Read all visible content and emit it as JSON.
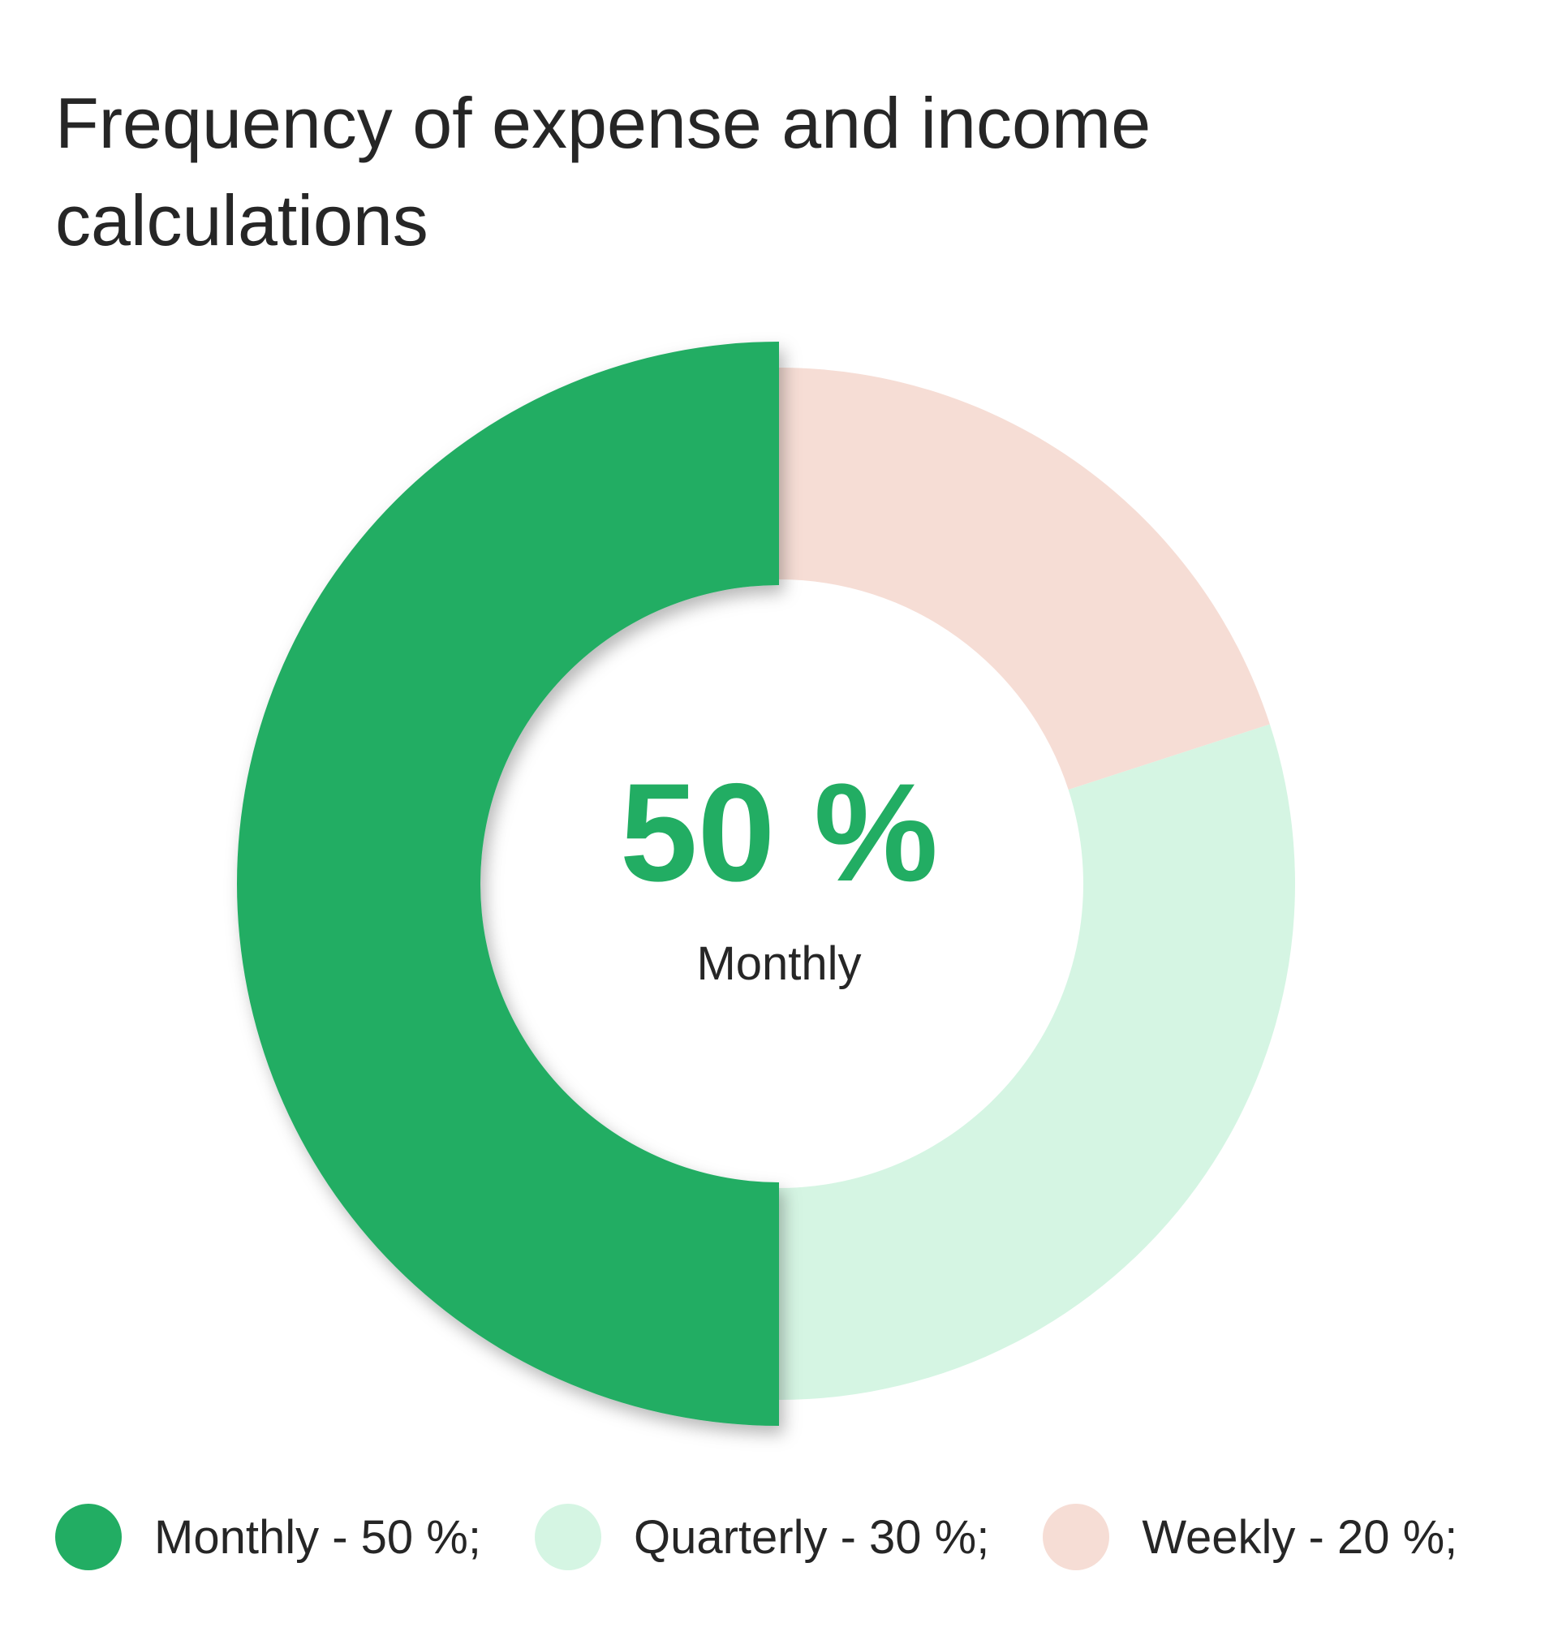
{
  "title": "Frequency of expense and income calculations",
  "center": {
    "value": "50 %",
    "label": "Monthly"
  },
  "colors": {
    "monthly": "#22ad63",
    "quarterly": "#d5f5e3",
    "weekly": "#f6ddd5",
    "center_value": "#22ad63",
    "text": "#262626"
  },
  "legend": [
    {
      "label": "Monthly - 50 %;"
    },
    {
      "label": "Quarterly - 30 %;"
    },
    {
      "label": "Weekly - 20 %;"
    }
  ],
  "chart_data": {
    "type": "pie",
    "title": "Frequency of expense and income calculations",
    "categories": [
      "Monthly",
      "Quarterly",
      "Weekly"
    ],
    "values": [
      50,
      30,
      20
    ],
    "unit": "%",
    "highlighted": "Monthly",
    "legend_position": "bottom"
  }
}
